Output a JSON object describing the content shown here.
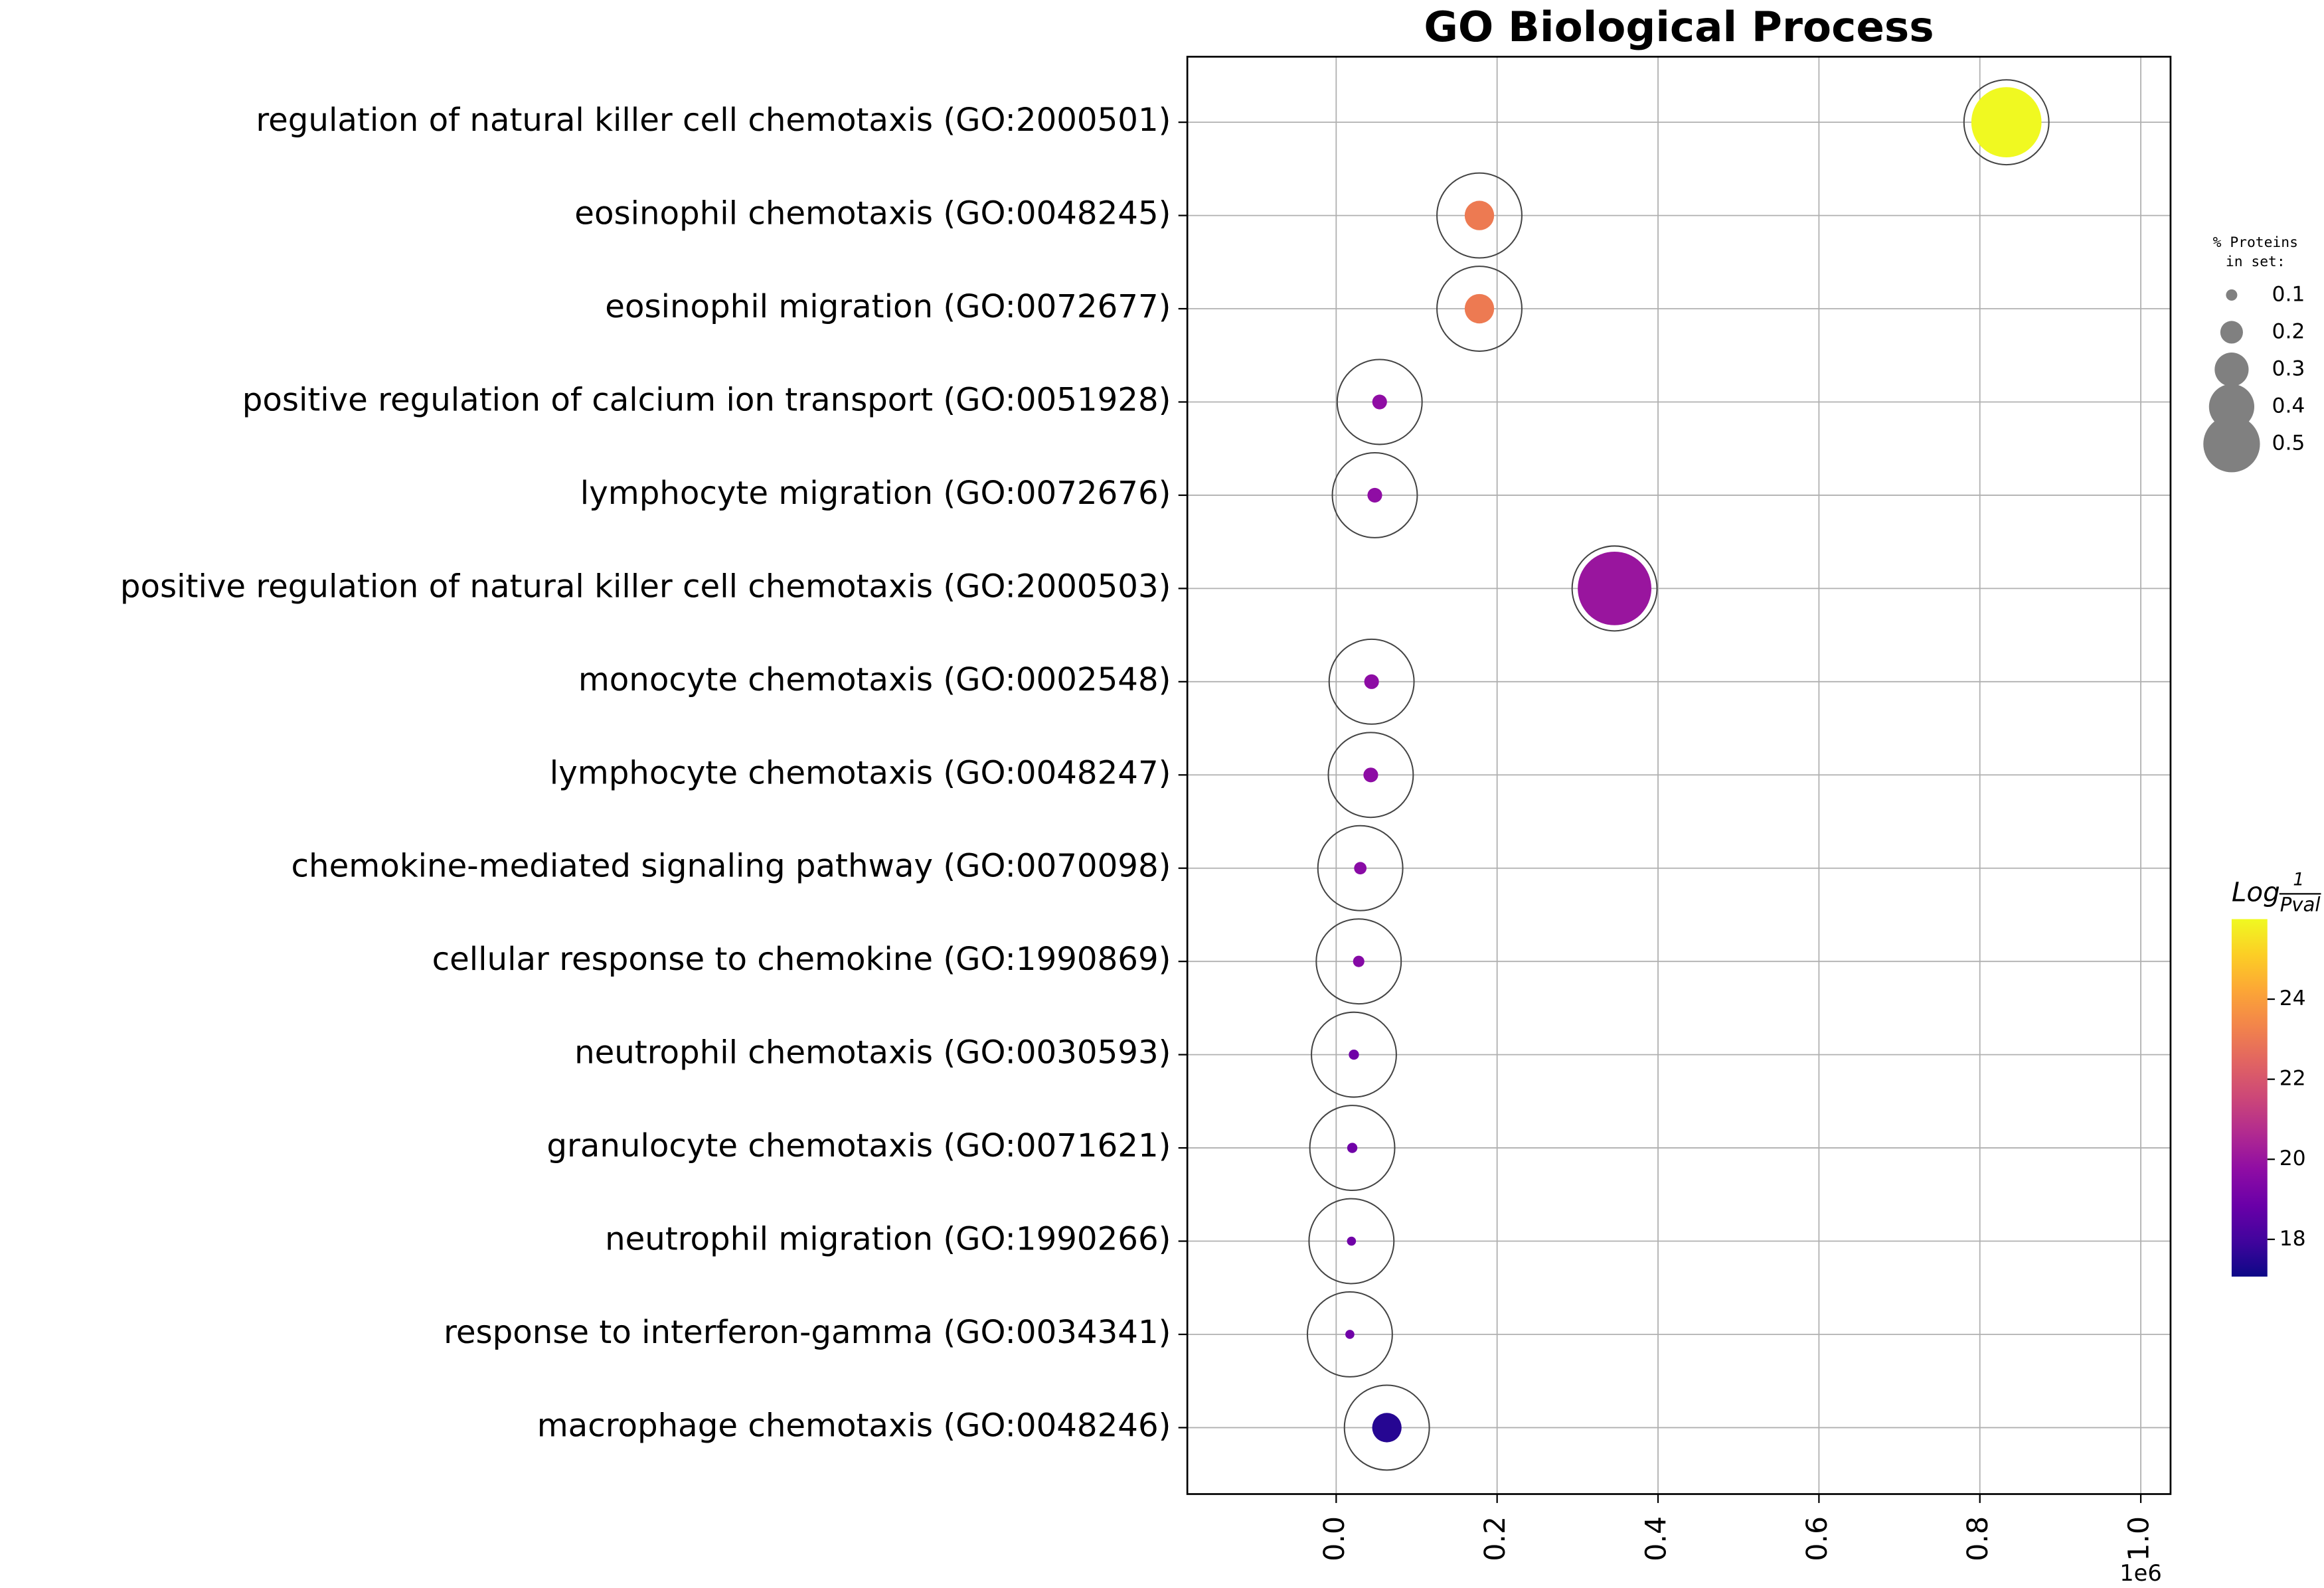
{
  "chart_data": {
    "type": "bubble",
    "title": "GO Biological Process",
    "categories": [
      "regulation of natural killer cell chemotaxis (GO:2000501)",
      "eosinophil chemotaxis (GO:0048245)",
      "eosinophil migration (GO:0072677)",
      "positive regulation of calcium ion transport (GO:0051928)",
      "lymphocyte migration (GO:0072676)",
      "positive regulation of natural killer cell chemotaxis (GO:2000503)",
      "monocyte chemotaxis (GO:0002548)",
      "lymphocyte chemotaxis (GO:0048247)",
      "chemokine-mediated signaling pathway (GO:0070098)",
      "cellular response to chemokine (GO:1990869)",
      "neutrophil chemotaxis (GO:0030593)",
      "granulocyte chemotaxis (GO:0071621)",
      "neutrophil migration (GO:1990266)",
      "response to interferon-gamma (GO:0034341)",
      "macrophage chemotaxis (GO:0048246)"
    ],
    "x": [
      0.833,
      0.178,
      0.178,
      0.054,
      0.048,
      0.346,
      0.044,
      0.043,
      0.03,
      0.028,
      0.022,
      0.02,
      0.019,
      0.017,
      0.063
    ],
    "sizes": [
      0.62,
      0.26,
      0.26,
      0.13,
      0.13,
      0.65,
      0.13,
      0.13,
      0.11,
      0.1,
      0.09,
      0.09,
      0.08,
      0.08,
      0.26
    ],
    "colors": [
      26.0,
      23.05,
      23.05,
      19.75,
      19.75,
      20.0,
      19.7,
      19.7,
      19.6,
      19.5,
      19.0,
      19.0,
      19.0,
      19.0,
      17.5
    ],
    "xlim": [
      -0.185,
      1.037
    ],
    "xticks": [
      {
        "value": 0,
        "label": "0.0"
      },
      {
        "value": 0.2,
        "label": "0.2"
      },
      {
        "value": 0.4,
        "label": "0.4"
      },
      {
        "value": 0.6,
        "label": "0.6"
      },
      {
        "value": 0.8,
        "label": "0.8"
      },
      {
        "value": 1.0,
        "label": "1.0"
      }
    ],
    "x_offset_label": "1e6",
    "grid": true,
    "colormap": "plasma",
    "clim": [
      17.07,
      26.0
    ],
    "colorbar_ticks": [
      18,
      20,
      22,
      24
    ],
    "colorbar_label": {
      "text": "Log",
      "numerator": "1",
      "denominator": "Pval"
    },
    "size_legend": {
      "title": [
        "% Proteins",
        "in set:"
      ],
      "values": [
        0.1,
        0.2,
        0.3,
        0.4,
        0.5
      ],
      "color": "#808080"
    }
  }
}
